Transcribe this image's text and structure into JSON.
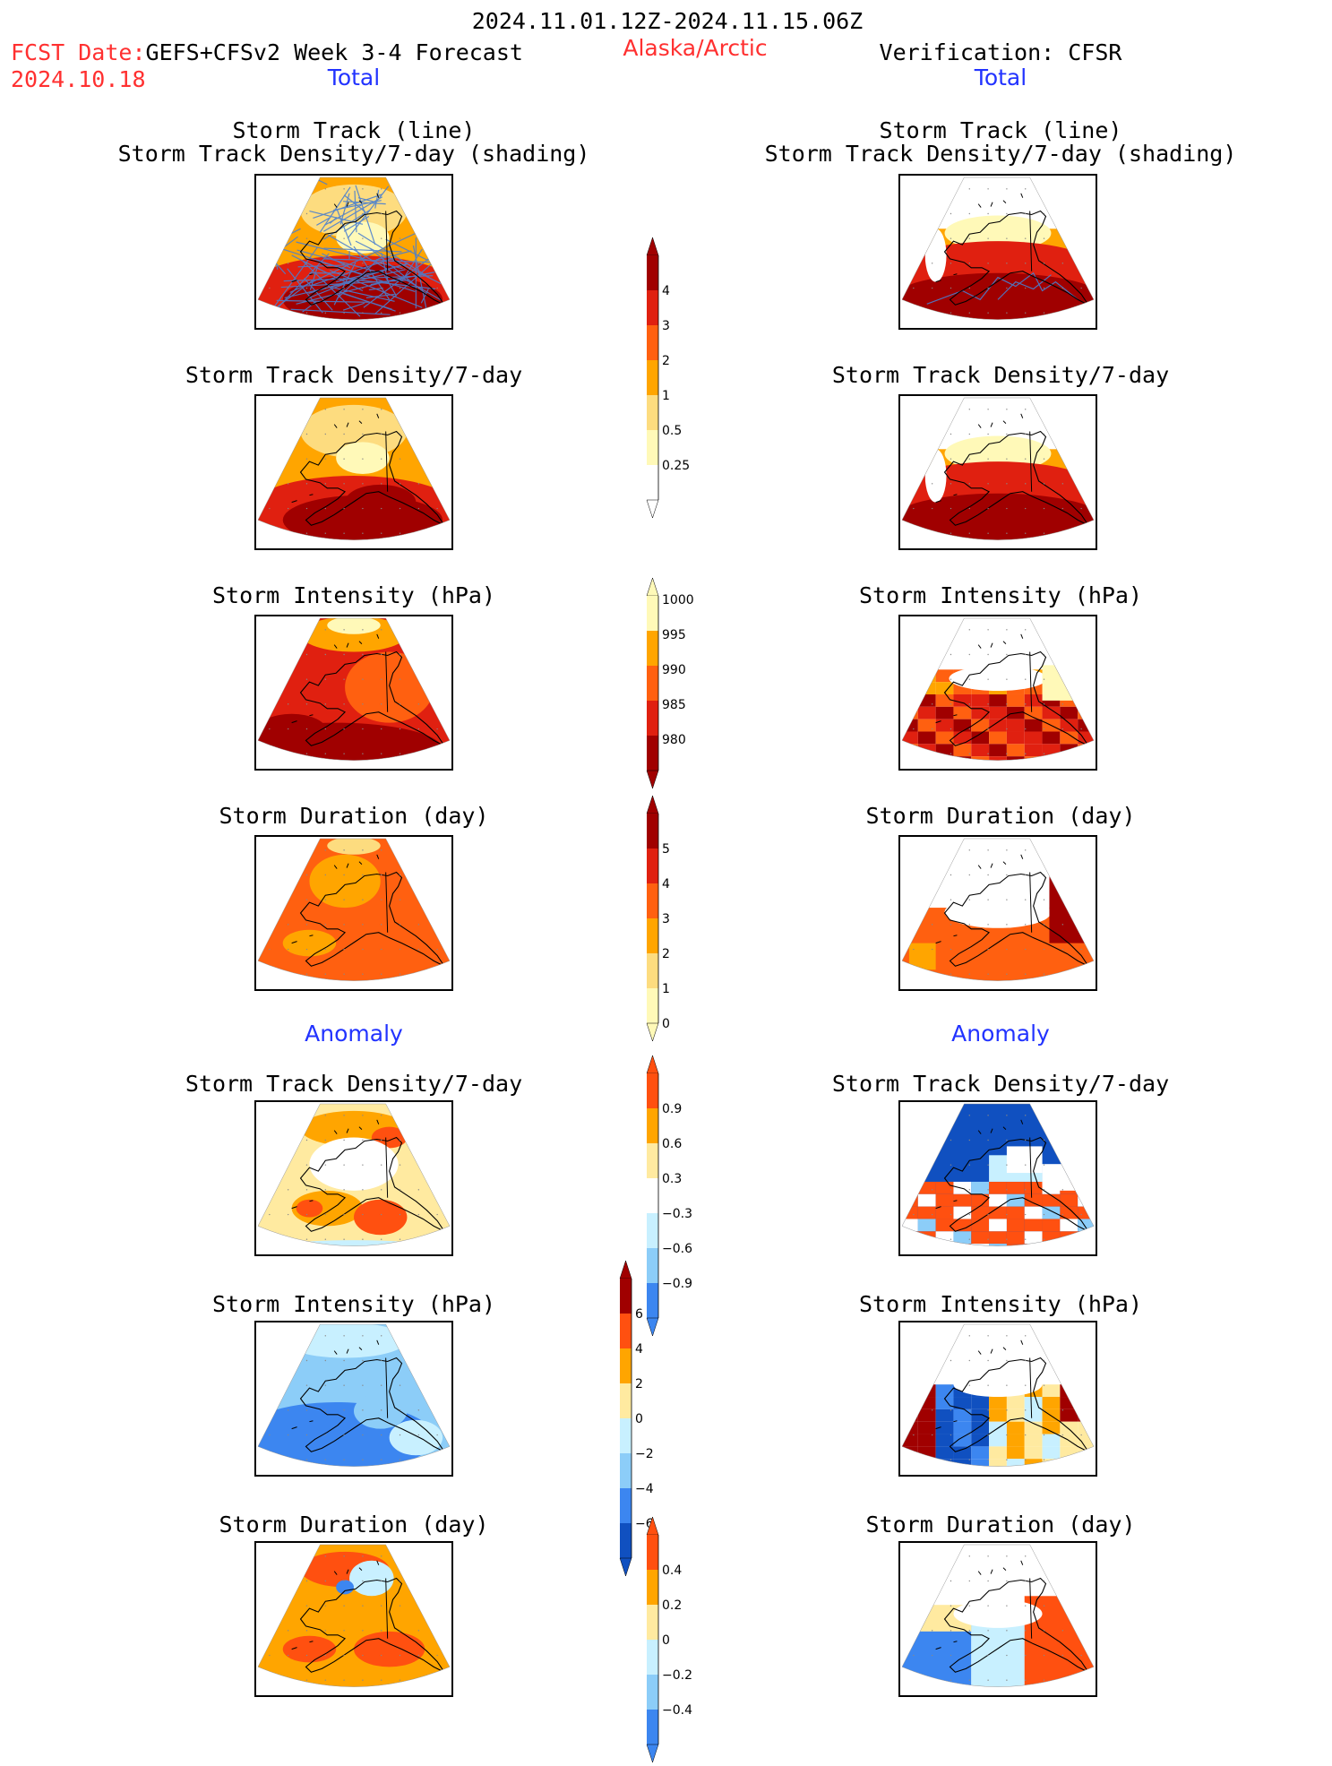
{
  "header": {
    "period": "2024.11.01.12Z-2024.11.15.06Z",
    "fcst_prefix": "FCST Date:",
    "fcst_model": "GEFS+CFSv2 Week 3-4 Forecast",
    "fcst_date": "2024.10.18",
    "region": "Alaska/Arctic",
    "verification": "Verification: CFSR",
    "left_total": "Total",
    "right_total": "Total",
    "left_anomaly": "Anomaly",
    "right_anomaly": "Anomaly"
  },
  "titles": {
    "track_line": "Storm Track (line)",
    "track_shading": "Storm Track Density/7-day (shading)",
    "density": "Storm Track Density/7-day",
    "intensity": "Storm Intensity (hPa)",
    "duration": "Storm Duration (day)"
  },
  "colorbars": {
    "density_total": [
      "4",
      "3",
      "2",
      "1",
      "0.5",
      "0.25"
    ],
    "intensity_total": [
      "1000",
      "995",
      "990",
      "985",
      "980"
    ],
    "duration_total": [
      "5",
      "4",
      "3",
      "2",
      "1",
      "0"
    ],
    "density_anom": [
      "0.9",
      "0.6",
      "0.3",
      "−0.3",
      "−0.6",
      "−0.9"
    ],
    "intensity_anom": [
      "6",
      "4",
      "2",
      "0",
      "−2",
      "−4",
      "−6"
    ],
    "duration_anom": [
      "0.4",
      "0.2",
      "0",
      "−0.2",
      "−0.4"
    ]
  },
  "palette": {
    "warm": [
      "#fff9b8",
      "#fddc7f",
      "#ffa500",
      "#ff6010",
      "#e02010",
      "#a00000"
    ],
    "anom_pos": [
      "#ffeaa0",
      "#ffa500",
      "#ff5010",
      "#a00000"
    ],
    "anom_neg": [
      "#c8f0ff",
      "#8ccdf8",
      "#3c86f0",
      "#1050c0"
    ]
  }
}
